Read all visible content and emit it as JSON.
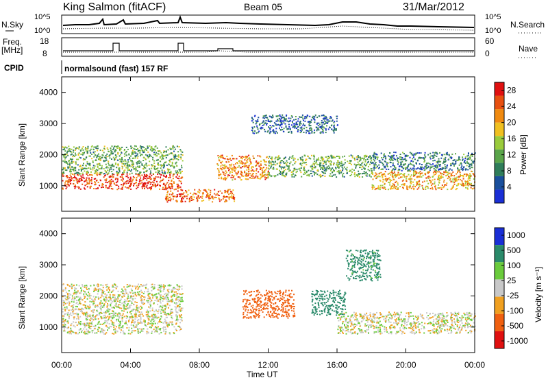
{
  "header": {
    "station": "King Salmon (fitACF)",
    "beam": "Beam 05",
    "date": "31/Mar/2012"
  },
  "noise_panel": {
    "left_label": "N.Sky",
    "left_ticks": [
      "10^5",
      "10^0"
    ],
    "right_label": "N.Search",
    "right_ticks": [
      "10^5",
      "10^0"
    ]
  },
  "freq_panel": {
    "left_label_line1": "Freq.",
    "left_label_line2": "[MHz]",
    "left_ticks": [
      "18",
      "8"
    ],
    "right_label": "Nave",
    "right_ticks": [
      "60",
      "0"
    ]
  },
  "cpid_panel": {
    "label": "CPID",
    "program": "normalsound (fast) 157 RF"
  },
  "colors": {
    "power": [
      "#1a2fd6",
      "#1a4f9c",
      "#2f7d5a",
      "#5aa54a",
      "#9acb3c",
      "#f0c020",
      "#f08a10",
      "#e85010",
      "#e01010"
    ],
    "velocity": [
      "#1a2fd6",
      "#2a8a6a",
      "#6acb3c",
      "#c8c8c8",
      "#f0a020",
      "#f06010",
      "#e01010"
    ],
    "ground_scatter": "#c0c0c0"
  },
  "chart_data": [
    {
      "type": "heatmap",
      "panel": "power",
      "ylabel": "Slant Range [km]",
      "yticks": [
        1000,
        2000,
        3000,
        4000
      ],
      "ylim": [
        180,
        4500
      ],
      "xlim": [
        0,
        24
      ],
      "colorbar": {
        "label": "Power [dB]",
        "ticks": [
          "4",
          "8",
          "12",
          "16",
          "20",
          "24",
          "28"
        ],
        "range": [
          0,
          30
        ]
      },
      "scatter_bands": [
        {
          "x_start": 0,
          "x_end": 7,
          "range_km": [
            900,
            1400
          ],
          "power_db": 26
        },
        {
          "x_start": 0,
          "x_end": 7,
          "range_km": [
            1400,
            2300
          ],
          "power_db": 12
        },
        {
          "x_start": 6,
          "x_end": 10,
          "range_km": [
            500,
            900
          ],
          "power_db": 24
        },
        {
          "x_start": 9,
          "x_end": 12,
          "range_km": [
            1200,
            2000
          ],
          "power_db": 22
        },
        {
          "x_start": 11,
          "x_end": 16,
          "range_km": [
            2700,
            3300
          ],
          "power_db": 6
        },
        {
          "x_start": 12,
          "x_end": 18,
          "range_km": [
            1300,
            2000
          ],
          "power_db": 12
        },
        {
          "x_start": 18,
          "x_end": 24,
          "range_km": [
            900,
            1500
          ],
          "power_db": 20
        },
        {
          "x_start": 18,
          "x_end": 24,
          "range_km": [
            1500,
            2100
          ],
          "power_db": 8
        }
      ]
    },
    {
      "type": "heatmap",
      "panel": "velocity",
      "ylabel": "Slant Range [km]",
      "yticks": [
        1000,
        2000,
        3000,
        4000
      ],
      "ylim": [
        180,
        4500
      ],
      "xlim": [
        0,
        24
      ],
      "xlabel": "Time UT",
      "xticks": [
        "00:00",
        "04:00",
        "08:00",
        "12:00",
        "16:00",
        "20:00",
        "00:00"
      ],
      "colorbar": {
        "label": "Velocity [m s⁻¹]",
        "ticks": [
          "1000",
          "500",
          "100",
          "25",
          "-25",
          "-100",
          "-500",
          "-1000"
        ]
      },
      "scatter_bands": [
        {
          "x_start": 0,
          "x_end": 7,
          "range_km": [
            800,
            1500
          ],
          "velocity": 0
        },
        {
          "x_start": 0,
          "x_end": 7,
          "range_km": [
            1500,
            2400
          ],
          "velocity": 0
        },
        {
          "x_start": 10.5,
          "x_end": 13.5,
          "range_km": [
            1300,
            2200
          ],
          "velocity": -400
        },
        {
          "x_start": 14.5,
          "x_end": 16.5,
          "range_km": [
            1400,
            2200
          ],
          "velocity": 300
        },
        {
          "x_start": 16.5,
          "x_end": 18.5,
          "range_km": [
            2500,
            3500
          ],
          "velocity": 150
        },
        {
          "x_start": 16,
          "x_end": 24,
          "range_km": [
            800,
            1500
          ],
          "velocity": 0
        }
      ]
    }
  ]
}
